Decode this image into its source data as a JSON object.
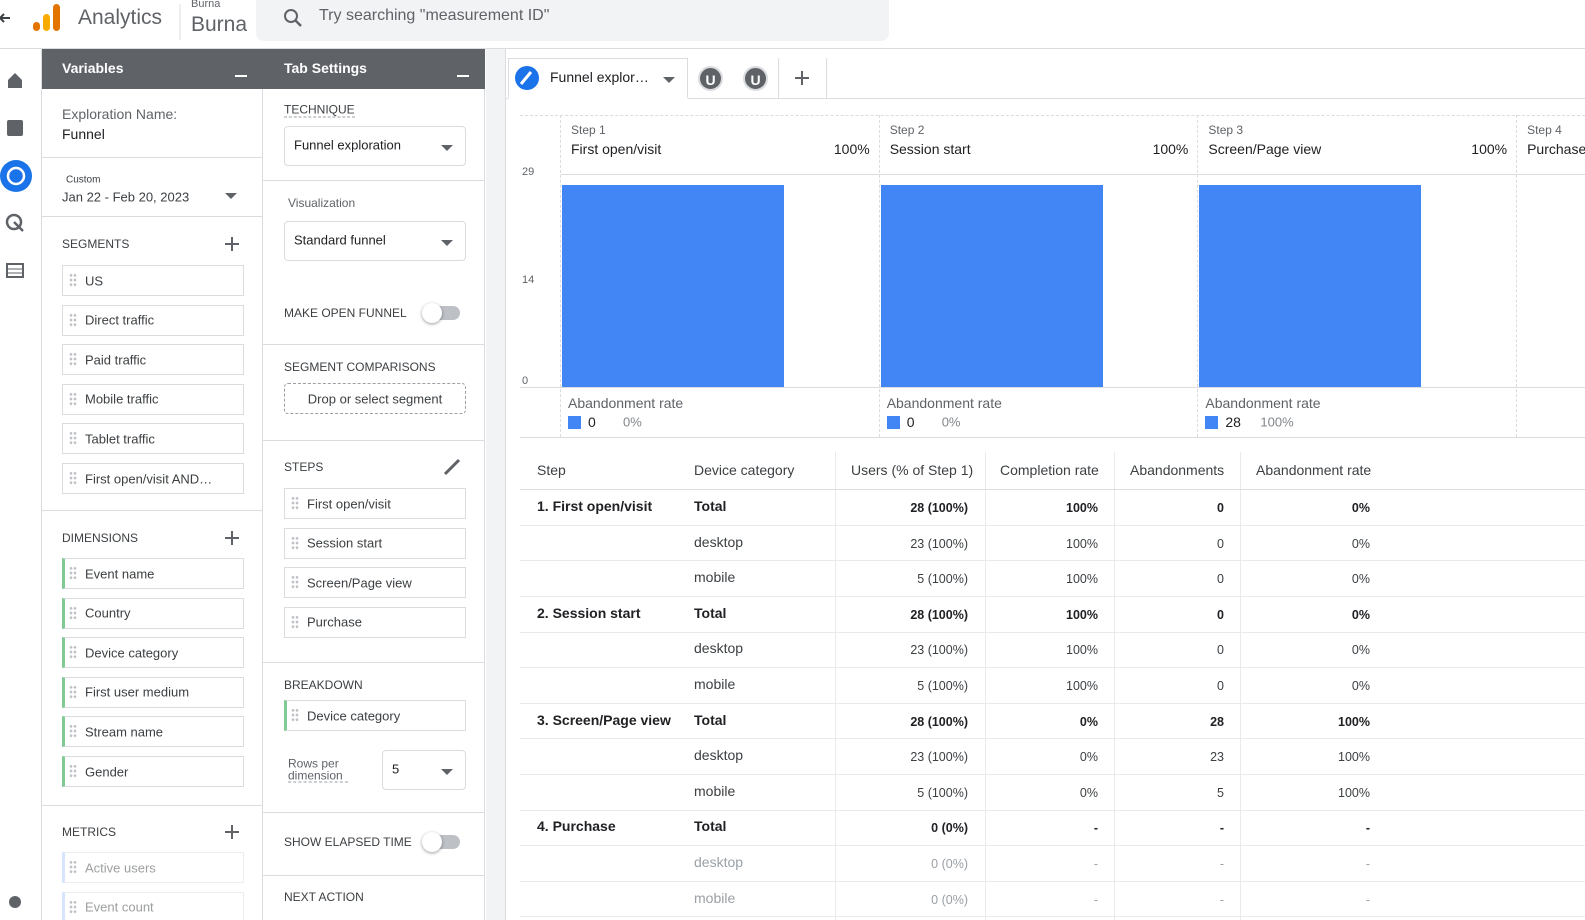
{
  "header": {
    "app": "Analytics",
    "account": "Burna",
    "property": "Burna",
    "search_placeholder": "Try searching \"measurement ID\""
  },
  "variables": {
    "title": "Variables",
    "exploration_name_label": "Exploration Name:",
    "exploration_name": "Funnel",
    "date_tag": "Custom",
    "date_range": "Jan 22 - Feb 20, 2023",
    "segments_title": "SEGMENTS",
    "segments": [
      "US",
      "Direct traffic",
      "Paid traffic",
      "Mobile traffic",
      "Tablet traffic",
      "First open/visit AND…"
    ],
    "dimensions_title": "DIMENSIONS",
    "dimensions": [
      "Event name",
      "Country",
      "Device category",
      "First user medium",
      "Stream name",
      "Gender"
    ],
    "metrics_title": "METRICS",
    "metrics": [
      "Active users",
      "Event count"
    ]
  },
  "tab_settings": {
    "title": "Tab Settings",
    "technique_label": "TECHNIQUE",
    "technique": "Funnel exploration",
    "visualization_label": "Visualization",
    "visualization": "Standard funnel",
    "open_funnel_label": "MAKE OPEN FUNNEL",
    "segment_comparisons_label": "SEGMENT COMPARISONS",
    "segment_drop": "Drop or select segment",
    "steps_label": "STEPS",
    "steps": [
      "First open/visit",
      "Session start",
      "Screen/Page view",
      "Purchase"
    ],
    "breakdown_label": "BREAKDOWN",
    "breakdown": "Device category",
    "rows_label": "Rows per dimension",
    "rows_value": 5,
    "elapsed_label": "SHOW ELAPSED TIME",
    "next_action_label": "NEXT ACTION"
  },
  "tabs": {
    "active": "Funnel explor…",
    "avatars": [
      "U",
      "U"
    ]
  },
  "funnel": {
    "ylim": [
      0,
      29
    ],
    "yticks": [
      0,
      14,
      29
    ],
    "color": "#4285f4",
    "steps": [
      {
        "step": "Step 1",
        "name": "First open/visit",
        "rate": "100%",
        "users": 28,
        "abandonment_label": "Abandonment rate",
        "abandonments": 0,
        "abandonment_rate": "0%"
      },
      {
        "step": "Step 2",
        "name": "Session start",
        "rate": "100%",
        "users": 28,
        "abandonment_label": "Abandonment rate",
        "abandonments": 0,
        "abandonment_rate": "0%"
      },
      {
        "step": "Step 3",
        "name": "Screen/Page view",
        "rate": "100%",
        "users": 28,
        "abandonment_label": "Abandonment rate",
        "abandonments": 28,
        "abandonment_rate": "100%"
      },
      {
        "step": "Step 4",
        "name": "Purchase"
      }
    ]
  },
  "table": {
    "headers": [
      "Step",
      "Device category",
      "Users (% of Step 1)",
      "Completion rate",
      "Abandonments",
      "Abandonment rate"
    ],
    "groups": [
      {
        "step": "1. First open/visit",
        "rows": [
          [
            "Total",
            "28 (100%)",
            "100%",
            0,
            "0%"
          ],
          [
            "desktop",
            "23 (100%)",
            "100%",
            0,
            "0%"
          ],
          [
            "mobile",
            "5 (100%)",
            "100%",
            0,
            "0%"
          ]
        ]
      },
      {
        "step": "2. Session start",
        "rows": [
          [
            "Total",
            "28 (100%)",
            "100%",
            0,
            "0%"
          ],
          [
            "desktop",
            "23 (100%)",
            "100%",
            0,
            "0%"
          ],
          [
            "mobile",
            "5 (100%)",
            "100%",
            0,
            "0%"
          ]
        ]
      },
      {
        "step": "3. Screen/Page view",
        "rows": [
          [
            "Total",
            "28 (100%)",
            "0%",
            28,
            "100%"
          ],
          [
            "desktop",
            "23 (100%)",
            "0%",
            23,
            "100%"
          ],
          [
            "mobile",
            "5 (100%)",
            "0%",
            5,
            "100%"
          ]
        ]
      },
      {
        "step": "4. Purchase",
        "rows": [
          [
            "Total",
            "0 (0%)",
            "-",
            "-",
            "-"
          ],
          [
            "desktop",
            "0 (0%)",
            "-",
            "-",
            "-"
          ],
          [
            "mobile",
            "0 (0%)",
            "-",
            "-",
            "-"
          ]
        ]
      }
    ]
  }
}
